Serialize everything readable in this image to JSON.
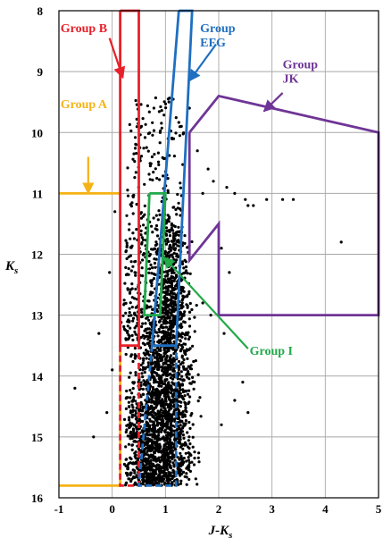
{
  "chart_data": {
    "type": "scatter",
    "xlabel": "J-K",
    "xlabel_sub": "s",
    "ylabel": "K",
    "ylabel_sub": "s",
    "xlim": [
      -1,
      5
    ],
    "ylim": [
      16,
      8
    ],
    "y_inverted": true,
    "x_ticks": [
      "-1",
      "0",
      "1",
      "2",
      "3",
      "4",
      "5"
    ],
    "y_ticks": [
      "8",
      "9",
      "10",
      "11",
      "12",
      "13",
      "14",
      "15",
      "16"
    ],
    "grid": true,
    "point_color": "#000000",
    "scatter_summary": {
      "description_values": "dense cloud of stars",
      "main_sequence_x_center": 0.95,
      "main_sequence_y_range": [
        11.5,
        15.8
      ],
      "count_approx": 2500
    },
    "outlier_points": [
      {
        "x": 1.3,
        "y": 9.9
      },
      {
        "x": 1.45,
        "y": 9.6
      },
      {
        "x": 1.6,
        "y": 10.3
      },
      {
        "x": 1.8,
        "y": 10.6
      },
      {
        "x": 1.9,
        "y": 10.8
      },
      {
        "x": 1.7,
        "y": 11.0
      },
      {
        "x": 2.15,
        "y": 10.9
      },
      {
        "x": 2.3,
        "y": 11.0
      },
      {
        "x": 2.5,
        "y": 11.1
      },
      {
        "x": 2.55,
        "y": 11.2
      },
      {
        "x": 2.65,
        "y": 11.2
      },
      {
        "x": 2.9,
        "y": 11.1
      },
      {
        "x": 3.2,
        "y": 11.1
      },
      {
        "x": 3.4,
        "y": 11.1
      },
      {
        "x": 4.3,
        "y": 11.8
      },
      {
        "x": 2.05,
        "y": 11.9
      },
      {
        "x": 2.2,
        "y": 12.3
      },
      {
        "x": 2.1,
        "y": 13.3
      },
      {
        "x": 2.45,
        "y": 14.1
      },
      {
        "x": 2.55,
        "y": 14.6
      },
      {
        "x": 2.3,
        "y": 14.4
      },
      {
        "x": 2.05,
        "y": 14.8
      },
      {
        "x": 1.7,
        "y": 12.8
      },
      {
        "x": 1.85,
        "y": 13.0
      },
      {
        "x": -0.7,
        "y": 14.2
      },
      {
        "x": -0.25,
        "y": 13.3
      },
      {
        "x": -0.05,
        "y": 12.3
      },
      {
        "x": 0.0,
        "y": 13.9
      },
      {
        "x": -0.1,
        "y": 14.6
      },
      {
        "x": -0.35,
        "y": 15.0
      },
      {
        "x": 0.05,
        "y": 11.3
      },
      {
        "x": 0.45,
        "y": 10.2
      },
      {
        "x": 0.55,
        "y": 9.9
      },
      {
        "x": 0.75,
        "y": 10.4
      },
      {
        "x": 0.9,
        "y": 10.0
      },
      {
        "x": 1.05,
        "y": 10.1
      }
    ],
    "colors": {
      "group_a": "#f5b317",
      "group_b": "#e8202a",
      "group_efg": "#1f6fc1",
      "group_jk": "#6f3596",
      "group_i": "#22a94a"
    },
    "groups": [
      {
        "name": "Group A",
        "color": "#f5b317",
        "label_lines": [
          "Group A"
        ],
        "label_pos": {
          "x": -0.97,
          "y": 9.6
        },
        "arrow_from": {
          "x": -0.45,
          "y": 10.4
        },
        "arrow_to": {
          "x": -0.45,
          "y": 11.0
        },
        "outline": [
          [
            -1,
            11
          ],
          [
            0.15,
            11
          ],
          [
            0.15,
            15.8
          ],
          [
            -1,
            15.8
          ]
        ],
        "dashed_parts": []
      },
      {
        "name": "Group B",
        "color": "#e8202a",
        "label_lines": [
          "Group B"
        ],
        "label_pos": {
          "x": -0.97,
          "y": 8.35
        },
        "arrow_from": {
          "x": -0.05,
          "y": 8.45
        },
        "arrow_to": {
          "x": 0.2,
          "y": 9.1
        },
        "outline": [
          [
            0.15,
            8
          ],
          [
            0.5,
            8
          ],
          [
            0.5,
            13.5
          ],
          [
            0.15,
            13.5
          ],
          [
            0.15,
            8
          ]
        ],
        "dashed_parts": [
          [
            [
              0.15,
              13.5
            ],
            [
              0.15,
              15.8
            ],
            [
              0.5,
              15.8
            ],
            [
              0.5,
              13.5
            ]
          ]
        ]
      },
      {
        "name": "Group EFG",
        "color": "#1f6fc1",
        "label_lines": [
          "Group",
          "EFG"
        ],
        "label_pos": {
          "x": 1.65,
          "y": 8.35
        },
        "arrow_from": {
          "x": 1.95,
          "y": 8.55
        },
        "arrow_to": {
          "x": 1.45,
          "y": 9.15
        },
        "outline": [
          [
            1.25,
            8
          ],
          [
            1.5,
            8
          ],
          [
            1.2,
            13.5
          ],
          [
            0.75,
            13.5
          ],
          [
            1.25,
            8
          ]
        ],
        "dashed_parts": [
          [
            [
              0.75,
              13.5
            ],
            [
              0.5,
              15.8
            ],
            [
              1.2,
              15.8
            ],
            [
              1.2,
              13.5
            ]
          ]
        ]
      },
      {
        "name": "Group JK",
        "color": "#6f3596",
        "label_lines": [
          "Group",
          "JK"
        ],
        "label_pos": {
          "x": 3.2,
          "y": 8.95
        },
        "arrow_from": {
          "x": 3.2,
          "y": 9.35
        },
        "arrow_to": {
          "x": 2.85,
          "y": 9.65
        },
        "outline": [
          [
            1.45,
            10
          ],
          [
            2,
            9.4
          ],
          [
            5,
            10
          ],
          [
            5,
            13
          ],
          [
            2,
            13
          ],
          [
            2,
            11.5
          ],
          [
            1.45,
            12.1
          ],
          [
            1.45,
            10
          ]
        ],
        "dashed_parts": []
      },
      {
        "name": "Group I",
        "color": "#22a94a",
        "label_lines": [
          "Group I"
        ],
        "label_pos": {
          "x": 2.58,
          "y": 13.65
        },
        "arrow_from": {
          "x": 2.55,
          "y": 13.55
        },
        "arrow_to": {
          "x": 0.97,
          "y": 12.05
        },
        "outline": [
          [
            0.7,
            11
          ],
          [
            1.0,
            11
          ],
          [
            0.9,
            13
          ],
          [
            0.6,
            13
          ],
          [
            0.7,
            11
          ]
        ],
        "dashed_parts": []
      }
    ]
  }
}
